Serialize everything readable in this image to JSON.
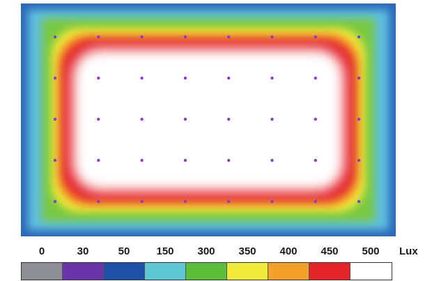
{
  "legend": {
    "values": [
      "0",
      "30",
      "50",
      "150",
      "300",
      "350",
      "400",
      "450",
      "500"
    ],
    "unit": "Lux",
    "colors": [
      "#8e8e96",
      "#6a35a8",
      "#1f4fa6",
      "#5fc6d4",
      "#5bbd3a",
      "#f0ea3a",
      "#f3a12a",
      "#e3242b",
      "#ffffff"
    ]
  },
  "map_colors": {
    "border": "#2b68b8",
    "outer": "#5fbfe0",
    "green": "#79c843",
    "yellow": "#f0ea3a",
    "orange": "#f3a12a",
    "red": "#e3242b",
    "core": "#ffffff",
    "fixture": "#8a3fc0"
  },
  "fixtures": {
    "columns": 8,
    "rows": 5
  }
}
